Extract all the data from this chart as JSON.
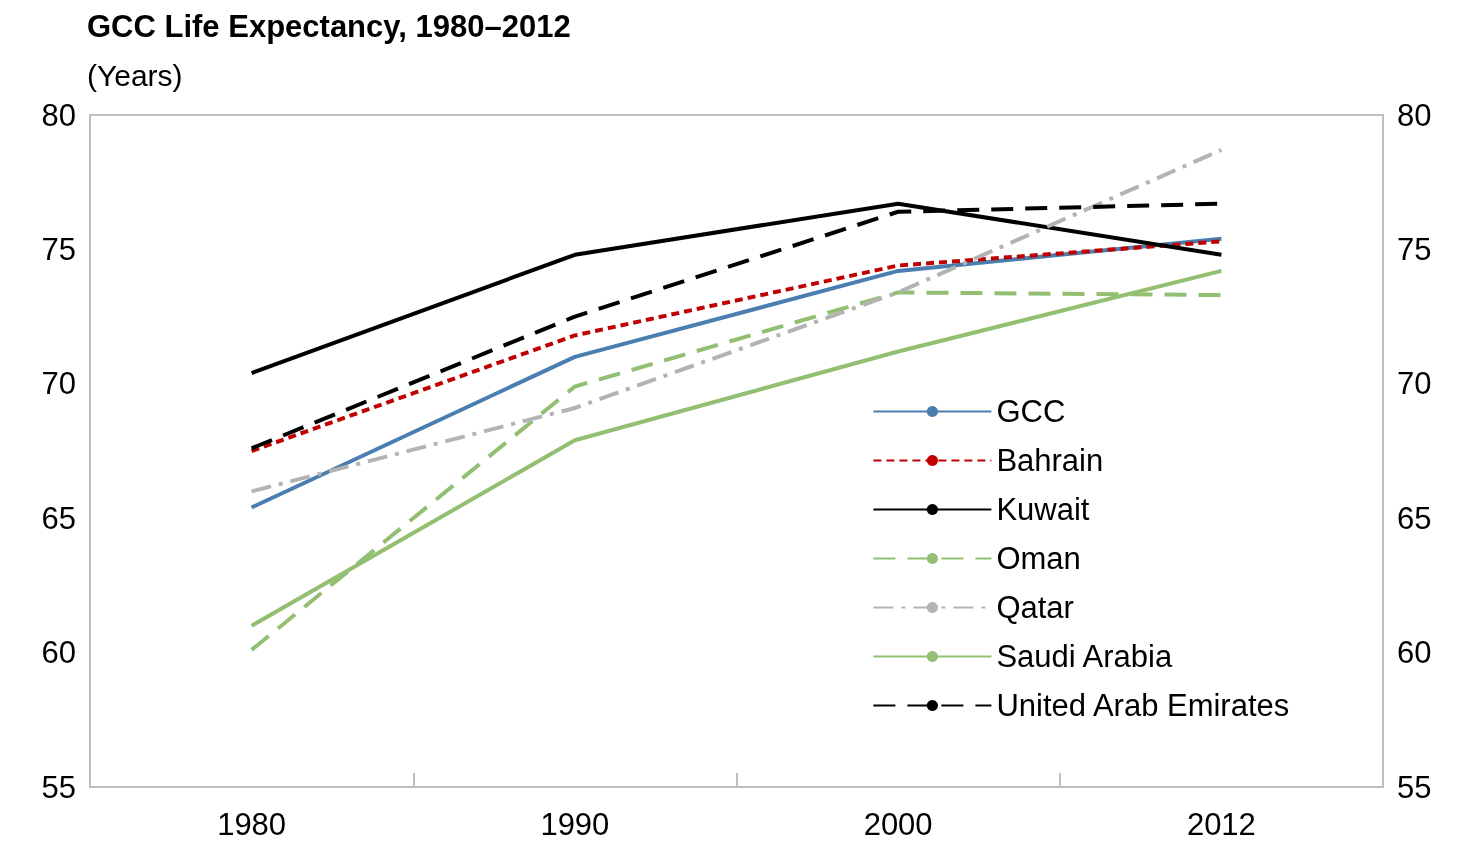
{
  "chart_data": {
    "type": "line",
    "title": "GCC Life Expectancy, 1980–2012",
    "subtitle": "(Years)",
    "categories": [
      "1980",
      "1990",
      "2000",
      "2012"
    ],
    "ylim": [
      55,
      80
    ],
    "yticks": [
      55,
      60,
      65,
      70,
      75,
      80
    ],
    "y2lim": [
      55,
      80
    ],
    "y2ticks": [
      55,
      60,
      65,
      70,
      75,
      80
    ],
    "grid": false,
    "legend": "bottom right",
    "marker": "none",
    "series": [
      {
        "name": "GCC",
        "color": "#4a7eb0",
        "line_style": "solid",
        "values": [
          65.4,
          71.0,
          74.2,
          75.4
        ]
      },
      {
        "name": "Bahrain",
        "color": "#c00000",
        "line_style": "dotted",
        "values": [
          67.5,
          71.8,
          74.4,
          75.3
        ]
      },
      {
        "name": "Kuwait",
        "color": "#000000",
        "line_style": "solid",
        "values": [
          70.4,
          74.8,
          76.7,
          74.8
        ]
      },
      {
        "name": "Oman",
        "color": "#93bf73",
        "line_style": "dashed",
        "values": [
          60.1,
          69.9,
          73.4,
          73.3
        ]
      },
      {
        "name": "Qatar",
        "color": "#b3b3b3",
        "line_style": "dashdot",
        "values": [
          66.0,
          69.1,
          73.4,
          78.7
        ]
      },
      {
        "name": "Saudi Arabia",
        "color": "#93bf73",
        "line_style": "solid",
        "values": [
          61.0,
          67.9,
          71.2,
          74.2
        ]
      },
      {
        "name": "United Arab Emirates",
        "color": "#000000",
        "line_style": "dashed",
        "values": [
          67.6,
          72.5,
          76.4,
          76.7
        ]
      }
    ]
  }
}
